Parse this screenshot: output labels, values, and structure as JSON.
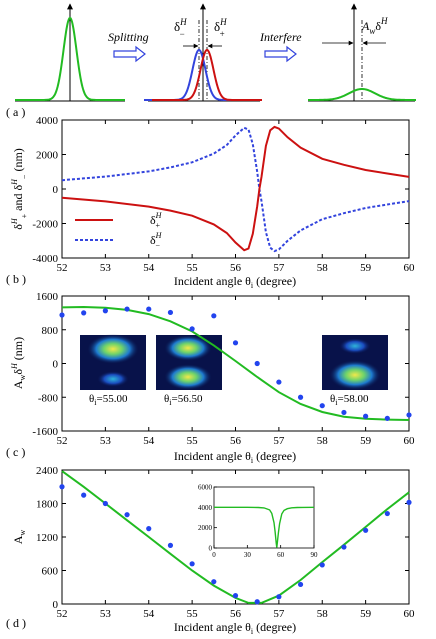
{
  "colors": {
    "green": "#22bb22",
    "red": "#cc1111",
    "blue": "#3344dd",
    "blue_marker": "#2244ee",
    "beam_dark": "#08124a",
    "beam_hot": "#ffee33"
  },
  "panel_a": {
    "label": "( a )",
    "splitting_text": "Splitting",
    "interfere_text": "Interfere",
    "delta_minus": "δ",
    "delta_minus_sup": "H",
    "delta_minus_sub": "−",
    "delta_plus": "δ",
    "delta_plus_sup": "H",
    "delta_plus_sub": "+",
    "aw_text": "A",
    "aw_sub": "w",
    "aw_delta": "δ",
    "aw_sup": "H"
  },
  "panel_b_text": {
    "label": "( b )",
    "ylabel_main": "δ",
    "ylabel_sup1": "H",
    "ylabel_sub1": "+",
    "ylabel_and": " and δ",
    "ylabel_sup2": "H",
    "ylabel_sub2": "−",
    "ylabel_unit": " (nm)",
    "xlabel_main": "Incident angle θ",
    "xlabel_sub": "i",
    "xlabel_unit": " (degree)",
    "legend": [
      {
        "main": "δ",
        "sup": "H",
        "sub": "+"
      },
      {
        "main": "δ",
        "sup": "H",
        "sub": "−"
      }
    ]
  },
  "panel_c_text": {
    "label": "( c )",
    "ylabel_main": "A",
    "ylabel_sub": "w",
    "ylabel_rest": "δ",
    "ylabel_sup": "H",
    "ylabel_unit": " (nm)",
    "xlabel_main": "Incident angle θ",
    "xlabel_sub": "i",
    "xlabel_unit": " (degree)",
    "insets": [
      {
        "caption_main": "θ",
        "caption_sub": "i",
        "caption_val": "=55.00"
      },
      {
        "caption_main": "θ",
        "caption_sub": "i",
        "caption_val": "=56.50"
      },
      {
        "caption_main": "θ",
        "caption_sub": "i",
        "caption_val": "=58.00"
      }
    ]
  },
  "panel_d_text": {
    "label": "( d )",
    "ylabel_main": "A",
    "ylabel_sub": "w",
    "xlabel_main": "Incident angle θ",
    "xlabel_sub": "i",
    "xlabel_unit": " (degree)"
  },
  "chart_data": [
    {
      "id": "b",
      "type": "line",
      "xlim": [
        52,
        60
      ],
      "ylim": [
        -4000,
        4000
      ],
      "xticks": [
        52,
        53,
        54,
        55,
        56,
        57,
        58,
        59,
        60
      ],
      "yticks": [
        -4000,
        -2000,
        0,
        2000,
        4000
      ],
      "grid": false,
      "legend_position": "bottom-left",
      "series": [
        {
          "name": "δ+H",
          "style": "solid",
          "x": [
            52,
            53,
            54,
            54.5,
            55,
            55.5,
            55.8,
            56.0,
            56.2,
            56.3,
            56.4,
            56.5,
            56.55,
            56.6,
            56.7,
            56.8,
            56.9,
            57.0,
            57.2,
            57.5,
            58,
            58.5,
            59,
            59.5,
            60
          ],
          "y": [
            -510,
            -720,
            -1020,
            -1250,
            -1550,
            -2050,
            -2550,
            -3100,
            -3550,
            -3450,
            -2600,
            -1000,
            0,
            700,
            2500,
            3400,
            3600,
            3500,
            3000,
            2400,
            1750,
            1400,
            1100,
            900,
            700
          ]
        },
        {
          "name": "δ−H",
          "style": "dashed",
          "x": [
            52,
            53,
            54,
            54.5,
            55,
            55.5,
            55.8,
            56.0,
            56.2,
            56.3,
            56.4,
            56.5,
            56.55,
            56.6,
            56.7,
            56.8,
            56.9,
            57.0,
            57.2,
            57.5,
            58,
            58.5,
            59,
            59.5,
            60
          ],
          "y": [
            510,
            720,
            1020,
            1250,
            1550,
            2050,
            2550,
            3100,
            3550,
            3450,
            2600,
            1000,
            0,
            -700,
            -2500,
            -3400,
            -3600,
            -3500,
            -3000,
            -2400,
            -1750,
            -1400,
            -1100,
            -900,
            -700
          ]
        }
      ]
    },
    {
      "id": "c",
      "type": "scatter",
      "xlim": [
        52,
        60
      ],
      "ylim": [
        -1600,
        1600
      ],
      "xticks": [
        52,
        53,
        54,
        55,
        56,
        57,
        58,
        59,
        60
      ],
      "yticks": [
        -1600,
        -800,
        0,
        800,
        1600
      ],
      "grid": false,
      "fit": {
        "x": [
          52,
          52.5,
          53,
          53.5,
          54,
          54.5,
          55,
          55.5,
          56,
          56.5,
          57,
          57.5,
          58,
          58.5,
          59,
          59.5,
          60
        ],
        "y": [
          1330,
          1340,
          1320,
          1270,
          1170,
          1000,
          760,
          430,
          60,
          -320,
          -680,
          -960,
          -1150,
          -1260,
          -1310,
          -1330,
          -1340
        ]
      },
      "points": {
        "x": [
          52,
          52.5,
          53,
          53.5,
          54,
          54.5,
          55,
          55.5,
          56,
          56.5,
          57,
          57.5,
          58,
          58.5,
          59,
          59.5,
          60
        ],
        "y": [
          1150,
          1200,
          1250,
          1290,
          1290,
          1210,
          820,
          1130,
          490,
          0,
          -440,
          -800,
          -1000,
          -1160,
          -1250,
          -1300,
          -1220
        ]
      },
      "inset_images": 3
    },
    {
      "id": "d",
      "type": "scatter",
      "xlim": [
        52,
        60
      ],
      "ylim": [
        0,
        2400
      ],
      "xticks": [
        52,
        53,
        54,
        55,
        56,
        57,
        58,
        59,
        60
      ],
      "yticks": [
        0,
        600,
        1200,
        1800,
        2400
      ],
      "grid": false,
      "fit": {
        "x": [
          52,
          52.5,
          53,
          53.5,
          54,
          54.5,
          55,
          55.5,
          56,
          56.3,
          56.6,
          57,
          57.5,
          58,
          58.5,
          59,
          59.5,
          60
        ],
        "y": [
          2380,
          2100,
          1800,
          1500,
          1200,
          900,
          600,
          330,
          110,
          20,
          20,
          150,
          430,
          750,
          1060,
          1380,
          1700,
          2000
        ]
      },
      "points": {
        "x": [
          52,
          52.5,
          53,
          53.5,
          54,
          54.5,
          55,
          55.5,
          56,
          56.5,
          57,
          57.5,
          58,
          58.5,
          59,
          59.5,
          60
        ],
        "y": [
          2100,
          1950,
          1800,
          1600,
          1350,
          1050,
          720,
          400,
          150,
          40,
          130,
          350,
          700,
          1020,
          1320,
          1620,
          1820
        ]
      },
      "inset": {
        "type": "line",
        "xlim": [
          0,
          90
        ],
        "ylim": [
          0,
          6000
        ],
        "xticks": [
          0,
          30,
          60,
          90
        ],
        "yticks": [
          0,
          2000,
          4000,
          6000
        ],
        "x": [
          0,
          10,
          20,
          30,
          40,
          45,
          50,
          52,
          54,
          55,
          56,
          56.5,
          57,
          58,
          59,
          61,
          63,
          66,
          70,
          75,
          80,
          90
        ],
        "y": [
          4000,
          4000,
          4000,
          4000,
          3980,
          3940,
          3750,
          3400,
          2500,
          1600,
          500,
          50,
          500,
          1500,
          2400,
          3350,
          3700,
          3870,
          3950,
          3980,
          3990,
          4000
        ]
      }
    }
  ]
}
